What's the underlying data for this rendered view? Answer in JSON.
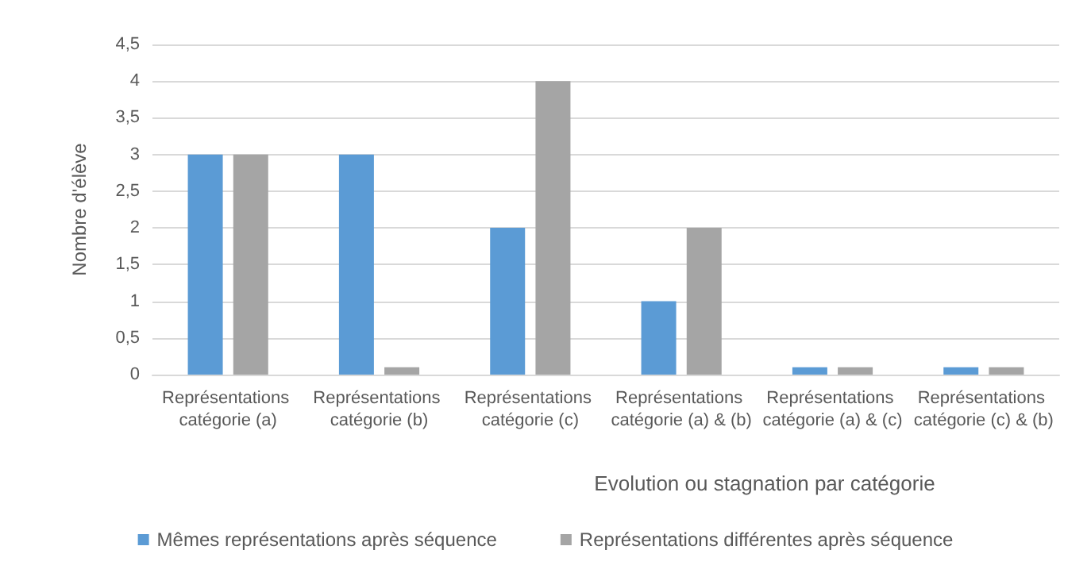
{
  "chart_data": {
    "type": "bar",
    "xlabel": "Evolution ou stagnation par catégorie",
    "ylabel": "Nombre d'élève",
    "categories": [
      "Représentations catégorie (a)",
      "Représentations catégorie (b)",
      "Représentations catégorie (c)",
      "Représentations catégorie (a) & (b)",
      "Représentations catégorie (a) & (c)",
      "Représentations catégorie (c) & (b)"
    ],
    "series": [
      {
        "name": "Mêmes représentations après séquence",
        "color": "#5b9bd5",
        "values": [
          3,
          3,
          2,
          1,
          0.1,
          0.1
        ]
      },
      {
        "name": "Représentations différentes après séquence",
        "color": "#a5a5a5",
        "values": [
          3,
          0.1,
          4,
          2,
          0.1,
          0.1
        ]
      }
    ],
    "ylim": [
      0,
      4.5
    ],
    "yticks": [
      0,
      {
        "value": 0.5,
        "label": "0,5"
      },
      1,
      {
        "value": 1.5,
        "label": "1,5"
      },
      2,
      {
        "value": 2.5,
        "label": "2,5"
      },
      3,
      {
        "value": 3.5,
        "label": "3,5"
      },
      4,
      {
        "value": 4.5,
        "label": "4,5"
      }
    ],
    "grid": "y",
    "legend": "bottom"
  }
}
